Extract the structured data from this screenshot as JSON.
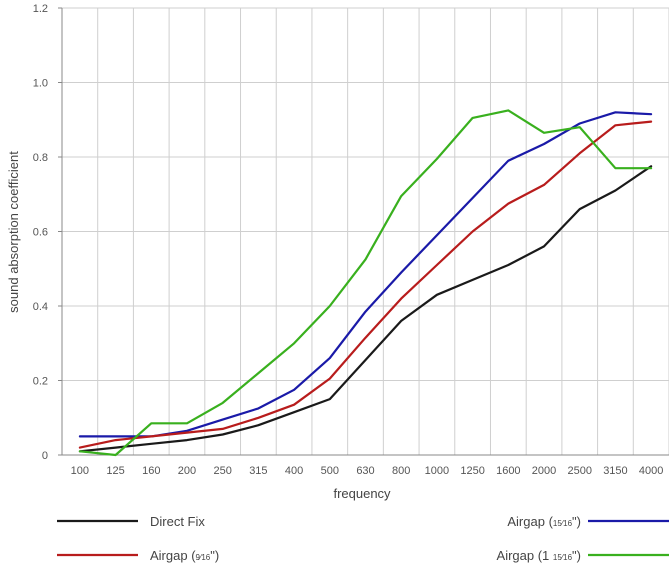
{
  "chart_data": {
    "type": "line",
    "xlabel": "frequency",
    "ylabel": "sound absorption coefficient",
    "categories": [
      "100",
      "125",
      "160",
      "200",
      "250",
      "315",
      "400",
      "500",
      "630",
      "800",
      "1000",
      "1250",
      "1600",
      "2000",
      "2500",
      "3150",
      "4000"
    ],
    "ylim": [
      0,
      1.2
    ],
    "yticks": [
      "0",
      "0.2",
      "0.4",
      "0.6",
      "0.8",
      "1.0",
      "1.2"
    ],
    "grid": true,
    "series": [
      {
        "name": "Direct Fix",
        "color": "#1a1a1a",
        "values": [
          0.01,
          0.02,
          0.03,
          0.04,
          0.055,
          0.08,
          0.115,
          0.15,
          0.255,
          0.36,
          0.43,
          0.47,
          0.51,
          0.56,
          0.66,
          0.71,
          0.775
        ]
      },
      {
        "name": "Airgap (15/16\")",
        "color": "#1a1aa8",
        "values": [
          0.05,
          0.05,
          0.05,
          0.065,
          0.095,
          0.125,
          0.175,
          0.26,
          0.385,
          0.49,
          0.59,
          0.69,
          0.79,
          0.835,
          0.89,
          0.92,
          0.915
        ]
      },
      {
        "name": "Airgap (9/16\")",
        "color": "#b81c1c",
        "values": [
          0.02,
          0.04,
          0.05,
          0.06,
          0.07,
          0.1,
          0.135,
          0.205,
          0.315,
          0.42,
          0.51,
          0.6,
          0.675,
          0.725,
          0.81,
          0.885,
          0.895
        ]
      },
      {
        "name": "Airgap (1 15/16\")",
        "color": "#39b01e",
        "values": [
          0.01,
          0.0,
          0.085,
          0.085,
          0.14,
          0.22,
          0.3,
          0.4,
          0.525,
          0.695,
          0.795,
          0.905,
          0.925,
          0.865,
          0.88,
          0.77,
          0.77
        ]
      }
    ],
    "legend": [
      {
        "series": 0,
        "label_main": "Direct Fix",
        "label_frac": "",
        "label_end": "",
        "side": "left",
        "row": 0
      },
      {
        "series": 1,
        "label_main": "Airgap (",
        "label_frac": "15⁄16",
        "label_end": "\")",
        "side": "right",
        "row": 0
      },
      {
        "series": 2,
        "label_main": "Airgap (",
        "label_frac": "9⁄16",
        "label_end": "\")",
        "side": "left",
        "row": 1
      },
      {
        "series": 3,
        "label_main": "Airgap (1 ",
        "label_frac": "15⁄16",
        "label_end": "\")",
        "side": "right",
        "row": 1
      }
    ]
  }
}
